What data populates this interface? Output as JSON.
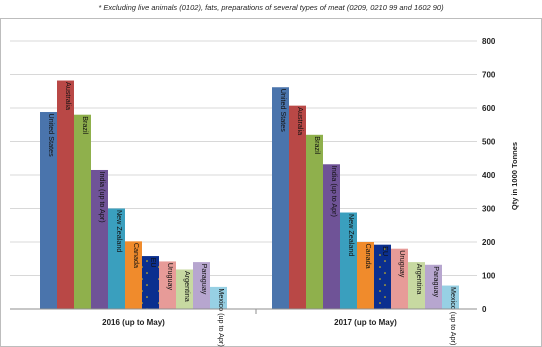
{
  "chart_data": {
    "type": "bar",
    "title": "",
    "subtitle": "* Excluding live animals (0102), fats, preparations of several types of meat (0209, 0210 99 and 1602 90)",
    "xlabel": "",
    "ylabel": "Qty in 1000 Tonnes",
    "ylim": [
      0,
      800
    ],
    "yticks": [
      "0",
      "100",
      "200",
      "300",
      "400",
      "500",
      "600",
      "700",
      "800"
    ],
    "grid": true,
    "legend": "none",
    "groups": [
      {
        "category": "2016 (up to May)",
        "bars": [
          {
            "label": "United States",
            "value": 588,
            "color": "#4a74ac"
          },
          {
            "label": "Australia",
            "value": 682,
            "color": "#b94846"
          },
          {
            "label": "Brazil",
            "value": 580,
            "color": "#8fb04c"
          },
          {
            "label": "India (up to Apr)",
            "value": 415,
            "color": "#6f5397"
          },
          {
            "label": "New Zealand",
            "value": 300,
            "color": "#3a9fbe"
          },
          {
            "label": "Canada",
            "value": 202,
            "color": "#f08b2c"
          },
          {
            "label": "EU",
            "value": 158,
            "color": "#0b2f8f"
          },
          {
            "label": "Uruguay",
            "value": 142,
            "color": "#e79b98"
          },
          {
            "label": "Argentina",
            "value": 118,
            "color": "#c7d9a1"
          },
          {
            "label": "Paraguay",
            "value": 140,
            "color": "#b7a6cf"
          },
          {
            "label": "Mexico (up to Apr)",
            "value": 66,
            "color": "#97d0e4"
          }
        ]
      },
      {
        "category": "2017 (up to May)",
        "bars": [
          {
            "label": "United States",
            "value": 662,
            "color": "#4a74ac"
          },
          {
            "label": "Australia",
            "value": 607,
            "color": "#b94846"
          },
          {
            "label": "Brazil",
            "value": 520,
            "color": "#8fb04c"
          },
          {
            "label": "India (up to Apr)",
            "value": 432,
            "color": "#6f5397"
          },
          {
            "label": "New Zealand",
            "value": 288,
            "color": "#3a9fbe"
          },
          {
            "label": "Canada",
            "value": 200,
            "color": "#f08b2c"
          },
          {
            "label": "EU",
            "value": 192,
            "color": "#0b2f8f"
          },
          {
            "label": "Uruguay",
            "value": 180,
            "color": "#e79b98"
          },
          {
            "label": "Argentina",
            "value": 140,
            "color": "#c7d9a1"
          },
          {
            "label": "Paraguay",
            "value": 132,
            "color": "#b7a6cf"
          },
          {
            "label": "Mexico (up to Apr)",
            "value": 70,
            "color": "#97d0e4"
          }
        ]
      }
    ]
  }
}
